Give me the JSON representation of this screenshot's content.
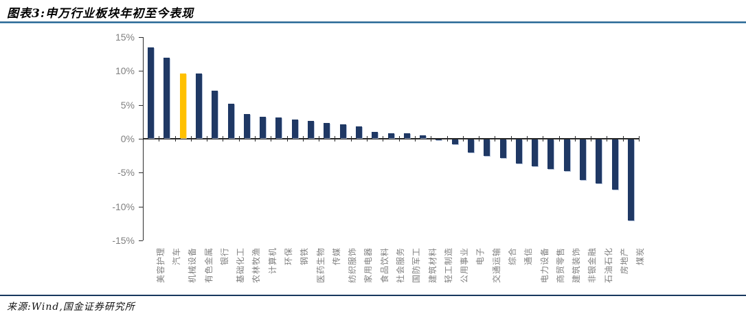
{
  "header": {
    "title": "图表3:申万行业板块年初至今表现"
  },
  "footer": {
    "source": "来源:Wind,国金证券研究所"
  },
  "colors": {
    "bar": "#1F3864",
    "highlight": "#FFC000",
    "axis_line": "#2B2B2B",
    "axis_text": "#7F7F7F",
    "title_rule_blue": "#2E77A9",
    "footer_rule_navy": "#17375E"
  },
  "chart_data": {
    "type": "bar",
    "title": "申万行业板块年初至今表现",
    "xlabel": "",
    "ylabel": "",
    "unit": "%",
    "ylim": [
      -15,
      15
    ],
    "ytick_step": 5,
    "ytick_values": [
      15,
      10,
      5,
      0,
      -5,
      -10,
      -15
    ],
    "ytick_labels": [
      "15%",
      "10%",
      "5%",
      "0%",
      "-5%",
      "-10%",
      "-15%"
    ],
    "grid": false,
    "legend": null,
    "bar_color": "#1F3864",
    "highlight_color": "#FFC000",
    "highlight_category": "机械设备",
    "categories": [
      "美容护理",
      "汽车",
      "机械设备",
      "有色金属",
      "银行",
      "基础化工",
      "农林牧渔",
      "计算机",
      "环保",
      "钢铁",
      "医药生物",
      "传媒",
      "纺织服饰",
      "家用电器",
      "食品饮料",
      "社会服务",
      "国防军工",
      "建筑材料",
      "轻工制造",
      "公用事业",
      "电子",
      "交通运输",
      "综合",
      "通信",
      "电力设备",
      "商贸零售",
      "建筑装饰",
      "非银金融",
      "石油石化",
      "房地产",
      "煤炭"
    ],
    "values": [
      13.4,
      11.9,
      9.5,
      9.5,
      7.0,
      5.1,
      3.6,
      3.1,
      3.0,
      2.7,
      2.5,
      2.2,
      2.0,
      1.7,
      0.9,
      0.7,
      0.7,
      0.4,
      -0.1,
      -0.7,
      -1.9,
      -2.4,
      -2.7,
      -3.5,
      -4.0,
      -4.4,
      -4.7,
      -6.0,
      -6.5,
      -7.4,
      -12.0
    ]
  }
}
